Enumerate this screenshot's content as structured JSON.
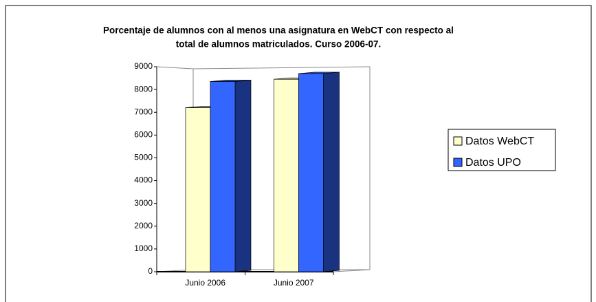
{
  "chart_data": {
    "type": "bar3d",
    "title": [
      "Porcentaje de alumnos con al menos una asignatura en WebCT con respecto al",
      "total de alumnos matriculados. Curso 2006-07."
    ],
    "categories": [
      "Junio 2006",
      "Junio 2007"
    ],
    "series": [
      {
        "name": "Datos WebCT",
        "color": "#ffffcc",
        "values": [
          7200,
          8450
        ]
      },
      {
        "name": "Datos UPO",
        "color": "#3366ff",
        "values": [
          8350,
          8700
        ]
      }
    ],
    "ylim": [
      0,
      9000
    ],
    "yticks": [
      0,
      1000,
      2000,
      3000,
      4000,
      5000,
      6000,
      7000,
      8000,
      9000
    ],
    "legend": "right"
  }
}
